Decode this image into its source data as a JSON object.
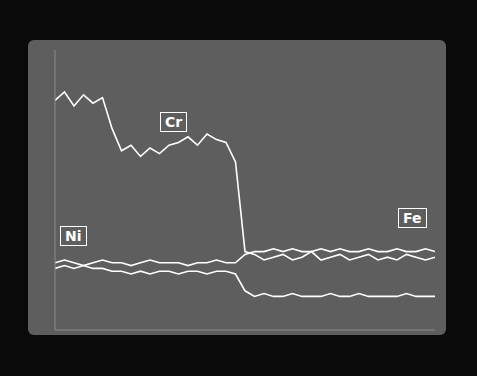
{
  "chart_data": {
    "type": "line",
    "x": [
      0,
      1,
      2,
      3,
      4,
      5,
      6,
      7,
      8,
      9,
      10,
      11,
      12,
      13,
      14,
      15,
      16,
      17,
      18,
      19,
      20,
      21,
      22,
      23,
      24,
      25,
      26,
      27,
      28,
      29,
      30,
      31,
      32,
      33,
      34,
      35,
      36,
      37,
      38,
      39,
      40
    ],
    "xlim": [
      0,
      40
    ],
    "ylim": [
      0,
      100
    ],
    "tick_labels": false,
    "grid": false,
    "series": [
      {
        "name": "Cr",
        "color": "#ffffff",
        "values": [
          82,
          85,
          80,
          84,
          81,
          83,
          72,
          64,
          66,
          62,
          65,
          63,
          66,
          67,
          69,
          66,
          70,
          68,
          67,
          60,
          28,
          27,
          25,
          26,
          27,
          25,
          26,
          28,
          25,
          26,
          27,
          25,
          26,
          27,
          25,
          26,
          25,
          27,
          26,
          25,
          26
        ]
      },
      {
        "name": "Fe",
        "color": "#ffffff",
        "values": [
          24,
          25,
          24,
          23,
          24,
          25,
          24,
          24,
          23,
          24,
          25,
          24,
          24,
          24,
          23,
          24,
          24,
          25,
          24,
          24,
          27,
          28,
          28,
          29,
          28,
          29,
          28,
          28,
          29,
          28,
          29,
          28,
          28,
          29,
          28,
          28,
          29,
          28,
          28,
          29,
          28
        ]
      },
      {
        "name": "Ni",
        "color": "#ffffff",
        "values": [
          22,
          23,
          22,
          23,
          22,
          22,
          21,
          21,
          20,
          21,
          20,
          21,
          21,
          20,
          21,
          21,
          20,
          21,
          21,
          20,
          14,
          12,
          13,
          12,
          12,
          13,
          12,
          12,
          12,
          13,
          12,
          12,
          13,
          12,
          12,
          12,
          12,
          13,
          12,
          12,
          12
        ]
      }
    ]
  }
}
